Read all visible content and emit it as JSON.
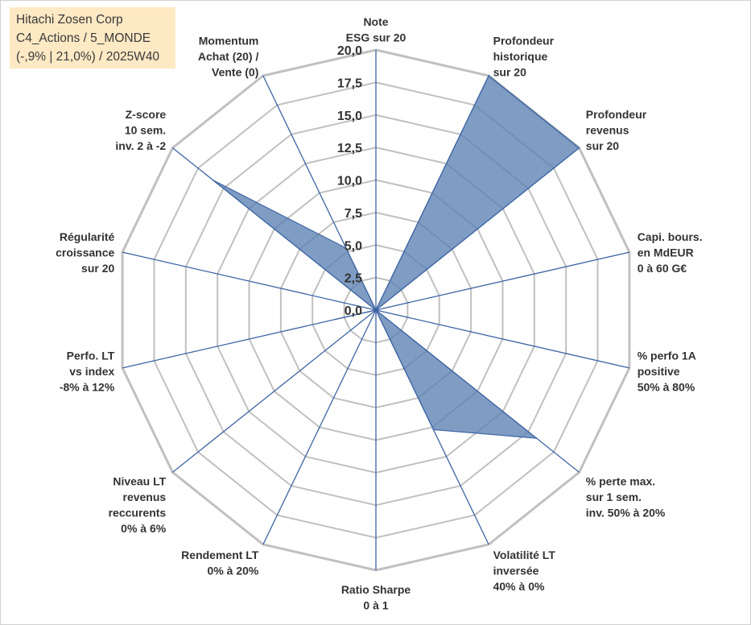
{
  "info_box": {
    "line1": "Hitachi Zosen Corp",
    "line2": "C4_Actions / 5_MONDE",
    "line3": "(-,9% | 21,0%) / 2025W40"
  },
  "colors": {
    "series_fill": "#5b80b2",
    "series_stroke": "#3d64a3",
    "grid": "#c0c0c0",
    "spoke": "#3d64a3",
    "info_bg": "#fde9c4"
  },
  "chart_data": {
    "type": "radar",
    "title": "",
    "range": [
      0,
      20
    ],
    "tick_step": 2.5,
    "tick_labels": [
      "0,0",
      "2,5",
      "5,0",
      "7,5",
      "10,0",
      "12,5",
      "15,0",
      "17,5",
      "20,0"
    ],
    "axes": [
      {
        "label": [
          "Note",
          "ESG sur 20"
        ],
        "value": 0
      },
      {
        "label": [
          "Profondeur",
          "historique",
          "sur 20"
        ],
        "value": 20
      },
      {
        "label": [
          "Profondeur",
          "revenus",
          "sur 20"
        ],
        "value": 20
      },
      {
        "label": [
          "Capi. bours.",
          "en MdEUR",
          "0 à 60 G€"
        ],
        "value": 0
      },
      {
        "label": [
          "% perfo 1A",
          "positive",
          "50% à 80%"
        ],
        "value": 0
      },
      {
        "label": [
          "% perte max.",
          "sur 1 sem.",
          "inv. 50% à 20%"
        ],
        "value": 15.8
      },
      {
        "label": [
          "Volatilité LT",
          "inversée",
          "40% à 0%"
        ],
        "value": 10.2
      },
      {
        "label": [
          "Ratio Sharpe",
          "0 à 1"
        ],
        "value": 0
      },
      {
        "label": [
          "Rendement LT",
          "0% à 20%"
        ],
        "value": 0
      },
      {
        "label": [
          "Niveau LT",
          "revenus",
          "reccurents",
          "0% à 6%"
        ],
        "value": 0
      },
      {
        "label": [
          "Perfo. LT",
          "vs index",
          "-8% à 12%"
        ],
        "value": 3.2
      },
      {
        "label": [
          "Régularité",
          "croissance",
          "sur 20"
        ],
        "value": 0
      },
      {
        "label": [
          "Z-score",
          "10 sem.",
          "inv. 2 à -2"
        ],
        "value": 16
      },
      {
        "label": [
          "Momentum",
          "Achat (20) /",
          "Vente (0)"
        ],
        "value": 5.3
      }
    ]
  }
}
